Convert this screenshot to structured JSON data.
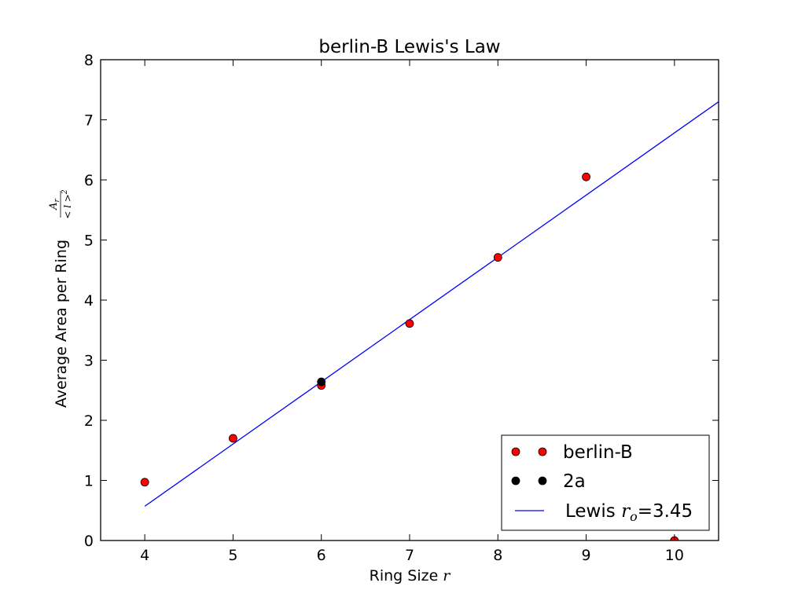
{
  "chart_data": {
    "type": "scatter",
    "title": "berlin-B Lewis's Law",
    "xlabel": "Ring Size",
    "xlabel_math": "r",
    "ylabel": "Average Area per Ring",
    "ylabel_math": {
      "numerator": "A",
      "numerator_sub": "r",
      "denominator": "< l >",
      "denominator_sup": "2"
    },
    "xlim": [
      3.5,
      10.5
    ],
    "ylim": [
      0,
      8
    ],
    "xticks": [
      4,
      5,
      6,
      7,
      8,
      9,
      10
    ],
    "yticks": [
      0,
      1,
      2,
      3,
      4,
      5,
      6,
      7,
      8
    ],
    "grid": false,
    "legend_position": "lower-right",
    "series": [
      {
        "name": "berlin-B",
        "kind": "points",
        "color": "#ff0000",
        "x": [
          4,
          5,
          6,
          7,
          8,
          9,
          10
        ],
        "y": [
          0.97,
          1.7,
          2.58,
          3.61,
          4.71,
          6.05,
          0.0
        ]
      },
      {
        "name": "2a",
        "kind": "points",
        "color": "#000000",
        "x": [
          6
        ],
        "y": [
          2.64
        ]
      },
      {
        "name": "Lewis",
        "name_math": "r",
        "name_math_sub": "o",
        "name_suffix": "=3.45",
        "kind": "line",
        "color": "#0000ff",
        "x": [
          4,
          10.5
        ],
        "y": [
          0.57,
          7.3
        ]
      }
    ]
  }
}
